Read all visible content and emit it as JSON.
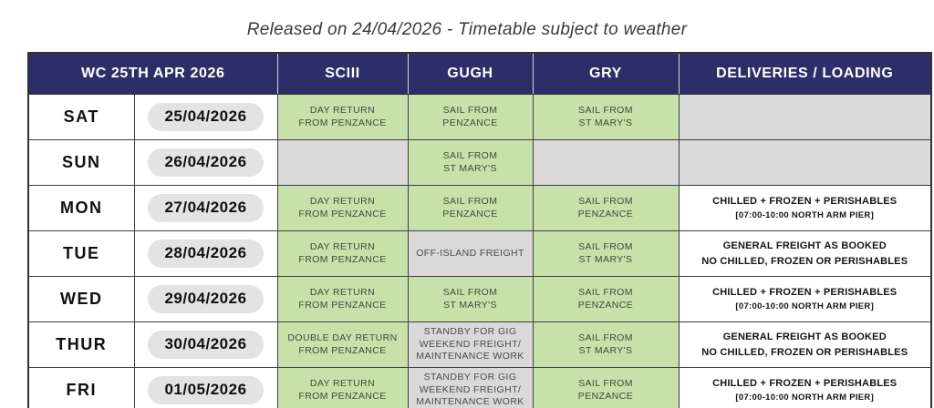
{
  "title": "Released on 24/04/2026 - Timetable subject to weather",
  "colors": {
    "header_bg": "#2c2e68",
    "header_text": "#ffffff",
    "green_cell": "#c8e1aa",
    "gray_cell": "#d9d9d9",
    "pill_bg": "#e3e3e3"
  },
  "table": {
    "headers": {
      "week": "WC 25TH APR 2026",
      "sciii": "SCIII",
      "gugh": "GUGH",
      "gry": "GRY",
      "deliveries": "DELIVERIES / LOADING"
    },
    "rows": [
      {
        "day": "SAT",
        "date": "25/04/2026",
        "sciii": {
          "lines": [
            "DAY RETURN",
            "FROM PENZANCE"
          ],
          "tone": "green"
        },
        "gugh": {
          "lines": [
            "SAIL FROM",
            "PENZANCE"
          ],
          "tone": "green"
        },
        "gry": {
          "lines": [
            "SAIL FROM",
            "ST MARY'S"
          ],
          "tone": "green"
        },
        "deliveries": {
          "lines": [],
          "tone": "gray"
        }
      },
      {
        "day": "SUN",
        "date": "26/04/2026",
        "sciii": {
          "lines": [],
          "tone": "gray"
        },
        "gugh": {
          "lines": [
            "SAIL FROM",
            "ST MARY'S"
          ],
          "tone": "green"
        },
        "gry": {
          "lines": [],
          "tone": "gray"
        },
        "deliveries": {
          "lines": [],
          "tone": "gray"
        }
      },
      {
        "day": "MON",
        "date": "27/04/2026",
        "sciii": {
          "lines": [
            "DAY RETURN",
            "FROM PENZANCE"
          ],
          "tone": "green"
        },
        "gugh": {
          "lines": [
            "SAIL FROM",
            "PENZANCE"
          ],
          "tone": "green"
        },
        "gry": {
          "lines": [
            "SAIL FROM",
            "PENZANCE"
          ],
          "tone": "green"
        },
        "deliveries": {
          "lines": [
            "CHILLED + FROZEN + PERISHABLES",
            "[07:00-10:00 NORTH ARM PIER]"
          ],
          "tone": "white"
        }
      },
      {
        "day": "TUE",
        "date": "28/04/2026",
        "sciii": {
          "lines": [
            "DAY RETURN",
            "FROM PENZANCE"
          ],
          "tone": "green"
        },
        "gugh": {
          "lines": [
            "OFF-ISLAND FREIGHT"
          ],
          "tone": "gray"
        },
        "gry": {
          "lines": [
            "SAIL FROM",
            "ST MARY'S"
          ],
          "tone": "green"
        },
        "deliveries": {
          "lines": [
            "GENERAL FREIGHT AS BOOKED",
            "NO CHILLED, FROZEN OR PERISHABLES"
          ],
          "tone": "white"
        }
      },
      {
        "day": "WED",
        "date": "29/04/2026",
        "sciii": {
          "lines": [
            "DAY RETURN",
            "FROM PENZANCE"
          ],
          "tone": "green"
        },
        "gugh": {
          "lines": [
            "SAIL FROM",
            "ST MARY'S"
          ],
          "tone": "green"
        },
        "gry": {
          "lines": [
            "SAIL FROM",
            "PENZANCE"
          ],
          "tone": "green"
        },
        "deliveries": {
          "lines": [
            "CHILLED + FROZEN + PERISHABLES",
            "[07:00-10:00 NORTH ARM PIER]"
          ],
          "tone": "white"
        }
      },
      {
        "day": "THUR",
        "date": "30/04/2026",
        "sciii": {
          "lines": [
            "DOUBLE DAY RETURN",
            "FROM PENZANCE"
          ],
          "tone": "green"
        },
        "gugh": {
          "lines": [
            "STANDBY FOR GIG",
            "WEEKEND FREIGHT/",
            "MAINTENANCE WORK"
          ],
          "tone": "gray"
        },
        "gry": {
          "lines": [
            "SAIL FROM",
            "ST MARY'S"
          ],
          "tone": "green"
        },
        "deliveries": {
          "lines": [
            "GENERAL FREIGHT AS BOOKED",
            "NO CHILLED, FROZEN OR PERISHABLES"
          ],
          "tone": "white"
        }
      },
      {
        "day": "FRI",
        "date": "01/05/2026",
        "sciii": {
          "lines": [
            "DAY RETURN",
            "FROM PENZANCE"
          ],
          "tone": "green"
        },
        "gugh": {
          "lines": [
            "STANDBY FOR GIG",
            "WEEKEND FREIGHT/",
            "MAINTENANCE WORK"
          ],
          "tone": "gray"
        },
        "gry": {
          "lines": [
            "SAIL FROM",
            "PENZANCE"
          ],
          "tone": "green"
        },
        "deliveries": {
          "lines": [
            "CHILLED + FROZEN + PERISHABLES",
            "[07:00-10:00 NORTH ARM PIER]"
          ],
          "tone": "white"
        }
      }
    ]
  }
}
